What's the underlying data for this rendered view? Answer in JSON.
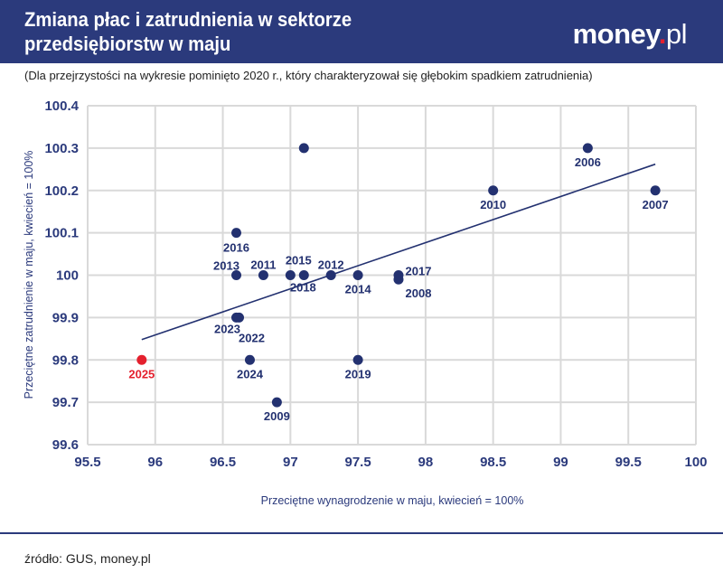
{
  "header": {
    "title": "Zmiana płac i zatrudnienia w sektorze przedsiębiorstw w maju",
    "logo": "money.pl"
  },
  "subtitle": "(Dla przejrzystości na wykresie pominięto 2020 r., który charakteryzował się głębokim spadkiem zatrudnienia)",
  "source": "źródło: GUS, money.pl",
  "colors": {
    "header": "#2b3a7c",
    "point": "#233170",
    "highlight": "#e4202e"
  },
  "chart_data": {
    "type": "scatter",
    "xlabel": "Przeciętne wynagrodzenie w maju, kwiecień = 100%",
    "ylabel": "Przeciętne zatrudnienie w maju, kwiecień = 100%",
    "xlim": [
      95.5,
      100
    ],
    "ylim": [
      99.6,
      100.4
    ],
    "xticks": [
      "95.5",
      "96",
      "96.5",
      "97",
      "97.5",
      "98",
      "98.5",
      "99",
      "99.5",
      "100"
    ],
    "yticks": [
      "99.6",
      "99.7",
      "99.8",
      "99.9",
      "100",
      "100.1",
      "100.2",
      "100.3",
      "100.4"
    ],
    "grid": true,
    "points": [
      {
        "label": "2025",
        "x": 95.9,
        "y": 99.8,
        "highlight": true
      },
      {
        "label": "2006",
        "x": 99.2,
        "y": 100.3
      },
      {
        "label": "",
        "x": 97.1,
        "y": 100.3
      },
      {
        "label": "2010",
        "x": 98.5,
        "y": 100.2
      },
      {
        "label": "2007",
        "x": 99.7,
        "y": 100.2
      },
      {
        "label": "2016",
        "x": 96.6,
        "y": 100.1
      },
      {
        "label": "2013",
        "x": 96.6,
        "y": 100.0
      },
      {
        "label": "2011",
        "x": 96.8,
        "y": 100.0
      },
      {
        "label": "2018",
        "x": 97.0,
        "y": 100.0
      },
      {
        "label": "2015",
        "x": 97.1,
        "y": 100.0
      },
      {
        "label": "2012",
        "x": 97.3,
        "y": 100.0
      },
      {
        "label": "2014",
        "x": 97.5,
        "y": 100.0
      },
      {
        "label": "2017",
        "x": 97.8,
        "y": 100.0
      },
      {
        "label": "2008",
        "x": 97.8,
        "y": 99.99
      },
      {
        "label": "2023",
        "x": 96.6,
        "y": 99.9
      },
      {
        "label": "2022",
        "x": 96.62,
        "y": 99.9
      },
      {
        "label": "2024",
        "x": 96.7,
        "y": 99.8
      },
      {
        "label": "2019",
        "x": 97.5,
        "y": 99.8
      },
      {
        "label": "2009",
        "x": 96.9,
        "y": 99.7
      }
    ],
    "trendline": {
      "x": [
        95.9,
        99.7
      ],
      "y": [
        99.848,
        100.262
      ]
    }
  }
}
